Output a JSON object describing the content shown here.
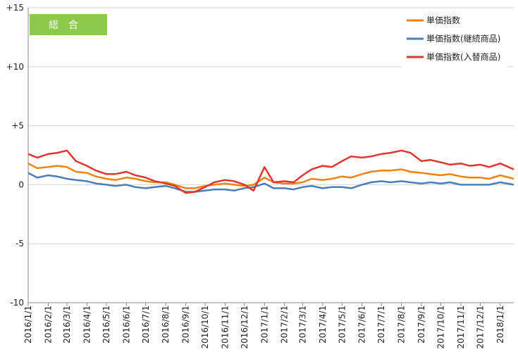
{
  "chart_data": {
    "type": "line",
    "badge": "総合",
    "ylim": [
      -10,
      15
    ],
    "yticks": [
      -10,
      -5,
      0,
      5,
      10,
      15
    ],
    "ytick_labels": [
      "-10",
      "-5",
      "0",
      "+5",
      "+10",
      "+15"
    ],
    "x_start": "2016/1/1",
    "x_end": "2018/1/22",
    "x_ticks": [
      "2016/1/1",
      "2016/2/1",
      "2016/3/1",
      "2016/4/1",
      "2016/5/1",
      "2016/6/1",
      "2016/7/1",
      "2016/8/1",
      "2016/9/1",
      "2016/10/1",
      "2016/11/1",
      "2016/12/1",
      "2017/1/1",
      "2017/2/1",
      "2017/3/1",
      "2017/4/1",
      "2017/5/1",
      "2017/6/1",
      "2017/7/1",
      "2017/8/1",
      "2017/9/1",
      "2017/10/1",
      "2017/11/1",
      "2017/12/1",
      "2018/1/1"
    ],
    "grid": {
      "horizontal": true,
      "vertical": false
    },
    "legend_position": "top-right",
    "series": [
      {
        "name": "単価指数",
        "color": "#F0820F",
        "points": [
          [
            "2016/1/1",
            1.8
          ],
          [
            "2016/1/15",
            1.4
          ],
          [
            "2016/2/1",
            1.5
          ],
          [
            "2016/2/15",
            1.6
          ],
          [
            "2016/3/1",
            1.5
          ],
          [
            "2016/3/15",
            1.1
          ],
          [
            "2016/4/1",
            1.0
          ],
          [
            "2016/4/15",
            0.7
          ],
          [
            "2016/5/1",
            0.5
          ],
          [
            "2016/5/15",
            0.4
          ],
          [
            "2016/6/1",
            0.6
          ],
          [
            "2016/6/15",
            0.5
          ],
          [
            "2016/7/1",
            0.3
          ],
          [
            "2016/7/15",
            0.2
          ],
          [
            "2016/8/1",
            0.2
          ],
          [
            "2016/8/15",
            0.0
          ],
          [
            "2016/9/1",
            -0.3
          ],
          [
            "2016/9/15",
            -0.3
          ],
          [
            "2016/10/1",
            -0.1
          ],
          [
            "2016/10/15",
            0.0
          ],
          [
            "2016/11/1",
            0.1
          ],
          [
            "2016/11/15",
            0.0
          ],
          [
            "2016/12/1",
            -0.1
          ],
          [
            "2016/12/15",
            0.0
          ],
          [
            "2017/1/1",
            0.6
          ],
          [
            "2017/1/15",
            0.2
          ],
          [
            "2017/2/1",
            0.1
          ],
          [
            "2017/2/15",
            0.1
          ],
          [
            "2017/3/1",
            0.2
          ],
          [
            "2017/3/15",
            0.5
          ],
          [
            "2017/4/1",
            0.4
          ],
          [
            "2017/4/15",
            0.5
          ],
          [
            "2017/5/1",
            0.7
          ],
          [
            "2017/5/15",
            0.6
          ],
          [
            "2017/6/1",
            0.9
          ],
          [
            "2017/6/15",
            1.1
          ],
          [
            "2017/7/1",
            1.2
          ],
          [
            "2017/7/15",
            1.2
          ],
          [
            "2017/8/1",
            1.3
          ],
          [
            "2017/8/15",
            1.1
          ],
          [
            "2017/9/1",
            1.0
          ],
          [
            "2017/9/15",
            0.9
          ],
          [
            "2017/10/1",
            0.8
          ],
          [
            "2017/10/15",
            0.9
          ],
          [
            "2017/11/1",
            0.7
          ],
          [
            "2017/11/15",
            0.6
          ],
          [
            "2017/12/1",
            0.6
          ],
          [
            "2017/12/15",
            0.5
          ],
          [
            "2018/1/1",
            0.8
          ],
          [
            "2018/1/22",
            0.5
          ]
        ]
      },
      {
        "name": "単価指数(継続商品)",
        "color": "#4A7EBB",
        "points": [
          [
            "2016/1/1",
            1.0
          ],
          [
            "2016/1/15",
            0.6
          ],
          [
            "2016/2/1",
            0.8
          ],
          [
            "2016/2/15",
            0.7
          ],
          [
            "2016/3/1",
            0.5
          ],
          [
            "2016/3/15",
            0.4
          ],
          [
            "2016/4/1",
            0.3
          ],
          [
            "2016/4/15",
            0.1
          ],
          [
            "2016/5/1",
            0.0
          ],
          [
            "2016/5/15",
            -0.1
          ],
          [
            "2016/6/1",
            0.0
          ],
          [
            "2016/6/15",
            -0.2
          ],
          [
            "2016/7/1",
            -0.3
          ],
          [
            "2016/7/15",
            -0.2
          ],
          [
            "2016/8/1",
            -0.1
          ],
          [
            "2016/8/15",
            -0.3
          ],
          [
            "2016/9/1",
            -0.6
          ],
          [
            "2016/9/15",
            -0.6
          ],
          [
            "2016/10/1",
            -0.5
          ],
          [
            "2016/10/15",
            -0.4
          ],
          [
            "2016/11/1",
            -0.4
          ],
          [
            "2016/11/15",
            -0.5
          ],
          [
            "2016/12/1",
            -0.3
          ],
          [
            "2016/12/15",
            -0.2
          ],
          [
            "2017/1/1",
            0.1
          ],
          [
            "2017/1/15",
            -0.3
          ],
          [
            "2017/2/1",
            -0.3
          ],
          [
            "2017/2/15",
            -0.4
          ],
          [
            "2017/3/1",
            -0.2
          ],
          [
            "2017/3/15",
            -0.1
          ],
          [
            "2017/4/1",
            -0.3
          ],
          [
            "2017/4/15",
            -0.2
          ],
          [
            "2017/5/1",
            -0.2
          ],
          [
            "2017/5/15",
            -0.3
          ],
          [
            "2017/6/1",
            0.0
          ],
          [
            "2017/6/15",
            0.2
          ],
          [
            "2017/7/1",
            0.3
          ],
          [
            "2017/7/15",
            0.2
          ],
          [
            "2017/8/1",
            0.3
          ],
          [
            "2017/8/15",
            0.2
          ],
          [
            "2017/9/1",
            0.1
          ],
          [
            "2017/9/15",
            0.2
          ],
          [
            "2017/10/1",
            0.1
          ],
          [
            "2017/10/15",
            0.2
          ],
          [
            "2017/11/1",
            0.0
          ],
          [
            "2017/11/15",
            0.0
          ],
          [
            "2017/12/1",
            0.0
          ],
          [
            "2017/12/15",
            0.0
          ],
          [
            "2018/1/1",
            0.2
          ],
          [
            "2018/1/22",
            0.0
          ]
        ]
      },
      {
        "name": "単価指数(入替商品)",
        "color": "#E0362C",
        "points": [
          [
            "2016/1/1",
            2.6
          ],
          [
            "2016/1/15",
            2.3
          ],
          [
            "2016/2/1",
            2.6
          ],
          [
            "2016/2/15",
            2.7
          ],
          [
            "2016/3/1",
            2.9
          ],
          [
            "2016/3/15",
            2.0
          ],
          [
            "2016/4/1",
            1.6
          ],
          [
            "2016/4/15",
            1.2
          ],
          [
            "2016/5/1",
            0.9
          ],
          [
            "2016/5/15",
            0.9
          ],
          [
            "2016/6/1",
            1.1
          ],
          [
            "2016/6/15",
            0.8
          ],
          [
            "2016/7/1",
            0.6
          ],
          [
            "2016/7/15",
            0.3
          ],
          [
            "2016/8/1",
            0.1
          ],
          [
            "2016/8/15",
            -0.1
          ],
          [
            "2016/9/1",
            -0.7
          ],
          [
            "2016/9/15",
            -0.6
          ],
          [
            "2016/10/1",
            -0.2
          ],
          [
            "2016/10/15",
            0.2
          ],
          [
            "2016/11/1",
            0.4
          ],
          [
            "2016/11/15",
            0.3
          ],
          [
            "2016/12/1",
            0.0
          ],
          [
            "2016/12/15",
            -0.5
          ],
          [
            "2017/1/1",
            1.5
          ],
          [
            "2017/1/15",
            0.2
          ],
          [
            "2017/2/1",
            0.3
          ],
          [
            "2017/2/15",
            0.2
          ],
          [
            "2017/3/1",
            0.8
          ],
          [
            "2017/3/15",
            1.3
          ],
          [
            "2017/4/1",
            1.6
          ],
          [
            "2017/4/15",
            1.5
          ],
          [
            "2017/5/1",
            2.0
          ],
          [
            "2017/5/15",
            2.4
          ],
          [
            "2017/6/1",
            2.3
          ],
          [
            "2017/6/15",
            2.4
          ],
          [
            "2017/7/1",
            2.6
          ],
          [
            "2017/7/15",
            2.7
          ],
          [
            "2017/8/1",
            2.9
          ],
          [
            "2017/8/15",
            2.7
          ],
          [
            "2017/9/1",
            2.0
          ],
          [
            "2017/9/15",
            2.1
          ],
          [
            "2017/10/1",
            1.9
          ],
          [
            "2017/10/15",
            1.7
          ],
          [
            "2017/11/1",
            1.8
          ],
          [
            "2017/11/15",
            1.6
          ],
          [
            "2017/12/1",
            1.7
          ],
          [
            "2017/12/15",
            1.5
          ],
          [
            "2018/1/1",
            1.8
          ],
          [
            "2018/1/22",
            1.3
          ]
        ]
      }
    ]
  }
}
